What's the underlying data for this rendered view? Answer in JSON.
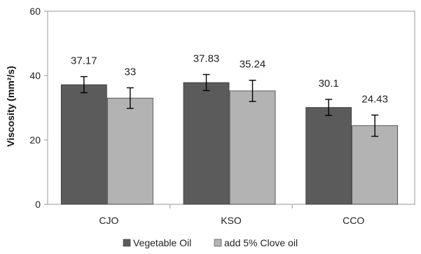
{
  "chart_data": {
    "type": "bar",
    "title": "",
    "xlabel": "",
    "ylabel": "Viscosity (mm²/s)",
    "ylim": [
      0,
      60
    ],
    "yticks": [
      0,
      20,
      40,
      60
    ],
    "grid": false,
    "legend_position": "bottom",
    "categories": [
      "CJO",
      "KSO",
      "CCO"
    ],
    "series": [
      {
        "name": "Vegetable Oil",
        "color": "#5b5b5b",
        "values": [
          37.17,
          37.83,
          30.1
        ],
        "errors": [
          2.5,
          2.5,
          2.5
        ],
        "labels": [
          "37.17",
          "37.83",
          "30.1"
        ]
      },
      {
        "name": "add 5% Clove oil",
        "color": "#b3b3b3",
        "values": [
          33,
          35.24,
          24.43
        ],
        "errors": [
          3.2,
          3.3,
          3.3
        ],
        "labels": [
          "33",
          "35.24",
          "24.43"
        ]
      }
    ]
  }
}
